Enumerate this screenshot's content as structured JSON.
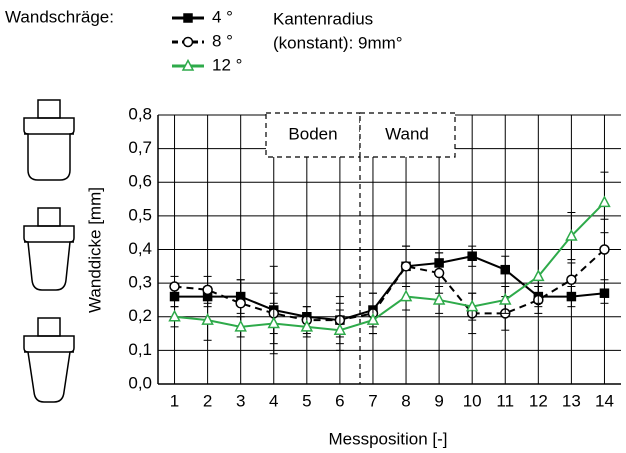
{
  "chart_data": {
    "type": "line",
    "legend_title": "Wandschräge:",
    "annotation": [
      "Kantenradius",
      "(konstant): 9mm°"
    ],
    "regions": [
      "Boden",
      "Wand"
    ],
    "xlabel": "Messposition   [-]",
    "ylabel": "Wanddicke  [mm]",
    "x": [
      1,
      2,
      3,
      4,
      5,
      6,
      7,
      8,
      9,
      10,
      11,
      12,
      13,
      14
    ],
    "xlim": [
      0.5,
      14.5
    ],
    "xticks": [
      1,
      2,
      3,
      4,
      5,
      6,
      7,
      8,
      9,
      10,
      11,
      12,
      13,
      14
    ],
    "ylim": [
      0,
      0.8
    ],
    "yticks": [
      {
        "value": 0,
        "label": "0,0"
      },
      {
        "value": 0.1,
        "label": "0,1"
      },
      {
        "value": 0.2,
        "label": "0,2"
      },
      {
        "value": 0.3,
        "label": "0,3"
      },
      {
        "value": 0.4,
        "label": "0,4"
      },
      {
        "value": 0.5,
        "label": "0,5"
      },
      {
        "value": 0.6,
        "label": "0,6"
      },
      {
        "value": 0.7,
        "label": "0,7"
      },
      {
        "value": 0.8,
        "label": "0,8"
      }
    ],
    "grid": true,
    "series": [
      {
        "name": "4 °",
        "color": "#000000",
        "marker": "square",
        "linestyle": "solid",
        "values": [
          0.26,
          0.26,
          0.26,
          0.22,
          0.2,
          0.19,
          0.22,
          0.35,
          0.36,
          0.38,
          0.34,
          0.26,
          0.26,
          0.27
        ],
        "errors": [
          0.03,
          0.03,
          0.05,
          0.13,
          0.03,
          0.05,
          0.05,
          0.06,
          0.03,
          0.03,
          0.04,
          0.03,
          0.03,
          0.03
        ]
      },
      {
        "name": "8 °",
        "color": "#000000",
        "marker": "circle",
        "linestyle": "dashed",
        "values": [
          0.29,
          0.28,
          0.24,
          0.21,
          0.19,
          0.19,
          0.21,
          0.35,
          0.33,
          0.21,
          0.21,
          0.25,
          0.31,
          0.4
        ],
        "errors": [
          0.03,
          0.04,
          0.07,
          0.06,
          0.04,
          0.07,
          0.06,
          0.06,
          0.06,
          0.06,
          0.05,
          0.04,
          0.05,
          0.09
        ]
      },
      {
        "name": "12 °",
        "color": "#2eaa4a",
        "marker": "triangle",
        "linestyle": "solid",
        "values": [
          0.2,
          0.19,
          0.17,
          0.18,
          0.17,
          0.16,
          0.19,
          0.26,
          0.25,
          0.23,
          0.25,
          0.32,
          0.44,
          0.54
        ],
        "errors": [
          0.03,
          0.06,
          0.03,
          0.06,
          0.03,
          0.06,
          0.04,
          0.04,
          0.04,
          0.04,
          0.04,
          0.08,
          0.07,
          0.09
        ]
      }
    ]
  }
}
